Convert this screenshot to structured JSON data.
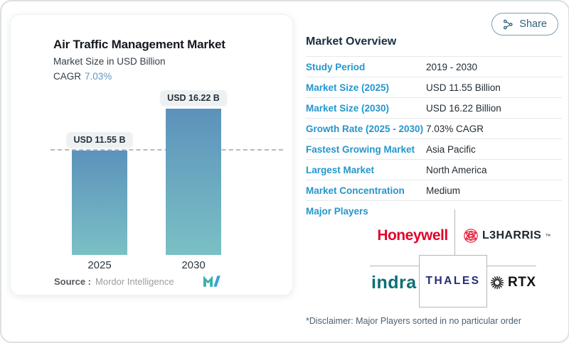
{
  "share": {
    "label": "Share"
  },
  "chart_card": {
    "title": "Air Traffic Management Market",
    "subtitle": "Market Size in USD Billion",
    "cagr_label": "CAGR",
    "cagr_value": "7.03%",
    "source_label": "Source :",
    "source_value": "Mordor Intelligence"
  },
  "chart_data": {
    "type": "bar",
    "title": "Air Traffic Management Market",
    "subtitle": "Market Size in USD Billion",
    "categories": [
      "2025",
      "2030"
    ],
    "values": [
      11.55,
      16.22
    ],
    "bar_labels": [
      "USD 11.55 B",
      "USD 16.22 B"
    ],
    "unit": "USD Billion",
    "ylim": [
      0,
      16.22
    ],
    "grid": "off",
    "annotations": "horizontal dashed reference line at 2025 bar top (11.55)",
    "legend": "none"
  },
  "overview": {
    "heading": "Market Overview",
    "rows": [
      {
        "label": "Study Period",
        "value": "2019 - 2030"
      },
      {
        "label": "Market Size (2025)",
        "value": "USD 11.55 Billion"
      },
      {
        "label": "Market Size (2030)",
        "value": "USD 16.22 Billion"
      },
      {
        "label": "Growth Rate (2025 - 2030)",
        "value": "7.03% CAGR"
      },
      {
        "label": "Fastest Growing Market",
        "value": "Asia Pacific"
      },
      {
        "label": "Largest Market",
        "value": "North America"
      },
      {
        "label": "Market Concentration",
        "value": "Medium"
      }
    ]
  },
  "players": {
    "heading": "Major Players",
    "honeywell": "Honeywell",
    "l3harris": "L3HARRIS",
    "l3harris_tm": "™",
    "indra": "indra",
    "thales": "THALES",
    "rtx": "RTX",
    "disclaimer": "*Disclaimer: Major Players sorted in no particular order"
  },
  "icons": {
    "share": "share-nodes-icon",
    "mordor": "mordor-intelligence-logo",
    "l3harris": "l3harris-globe-icon",
    "rtx": "rtx-starburst-icon"
  },
  "colors": {
    "label_blue": "#2496cd",
    "heading_navy": "#1b2f42",
    "cagr_blue": "#5f97c5",
    "bar_top": "#5c92bb",
    "bar_bottom": "#7bc0c5",
    "dashed_line": "#b5babd",
    "honeywell_red": "#e0062c",
    "l3harris_red": "#e8112d",
    "indra_teal": "#0d6e76",
    "thales_navy": "#242c77",
    "rtx_black": "#101214",
    "share_teal": "#2f617c"
  }
}
